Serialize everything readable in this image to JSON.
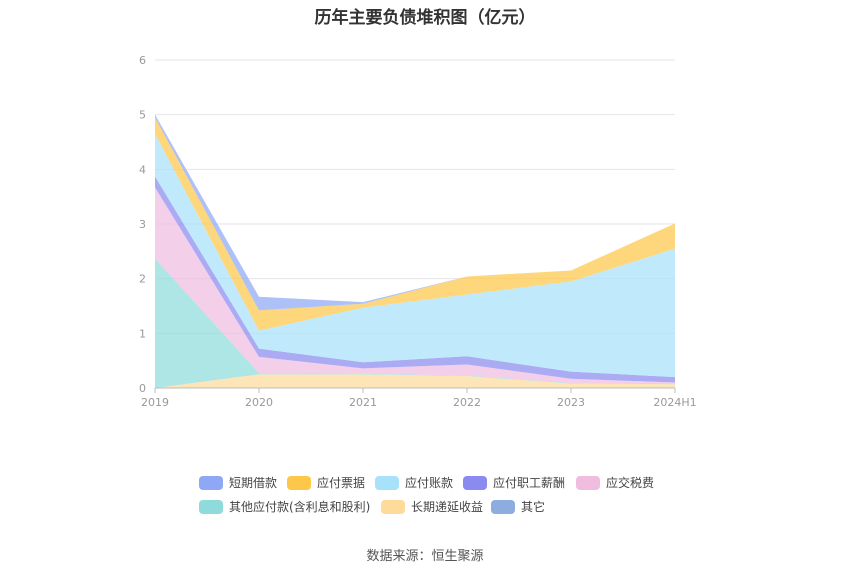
{
  "title": "历年主要负债堆积图（亿元）",
  "source": "数据来源：恒生聚源",
  "chart_data": {
    "type": "area",
    "stacked": true,
    "categories": [
      "2019",
      "2020",
      "2021",
      "2022",
      "2023",
      "2024H1"
    ],
    "ylim": [
      0,
      6
    ],
    "yticks": [
      0,
      1,
      2,
      3,
      4,
      5,
      6
    ],
    "grid": true,
    "legend_position": "bottom",
    "series": [
      {
        "name": "长期递延收益",
        "color": "#fedb9b",
        "values": [
          0,
          0.25,
          0.25,
          0.22,
          0.08,
          0.07
        ]
      },
      {
        "name": "其他应付款(含利息和股利)",
        "color": "#8fdbdb",
        "values": [
          2.37,
          0.02,
          0.01,
          0.01,
          0.01,
          0.01
        ]
      },
      {
        "name": "应交税费",
        "color": "#f0bce0",
        "values": [
          1.3,
          0.3,
          0.1,
          0.2,
          0.08,
          0.02
        ]
      },
      {
        "name": "应付职工薪酬",
        "color": "#8a8af0",
        "values": [
          0.2,
          0.15,
          0.11,
          0.15,
          0.13,
          0.1
        ]
      },
      {
        "name": "应付账款",
        "color": "#a8e2fa",
        "values": [
          0.78,
          0.33,
          1.0,
          1.13,
          1.65,
          2.35
        ]
      },
      {
        "name": "应付票据",
        "color": "#fdc84a",
        "values": [
          0.3,
          0.37,
          0.07,
          0.33,
          0.2,
          0.46
        ]
      },
      {
        "name": "短期借款",
        "color": "#8fa8f5",
        "values": [
          0.05,
          0.25,
          0.03,
          0,
          0,
          0
        ]
      },
      {
        "name": "其它",
        "color": "#8dadde",
        "values": [
          0,
          0,
          0,
          0,
          0,
          0
        ]
      }
    ],
    "legend_order": [
      "短期借款",
      "应付票据",
      "应付账款",
      "应付职工薪酬",
      "应交税费",
      "其他应付款(含利息和股利)",
      "长期递延收益",
      "其它"
    ],
    "legend_colors": [
      "#8fa8f5",
      "#fdc84a",
      "#a8e2fa",
      "#8a8af0",
      "#f0bce0",
      "#8fdbdb",
      "#fedb9b",
      "#8dadde"
    ]
  }
}
